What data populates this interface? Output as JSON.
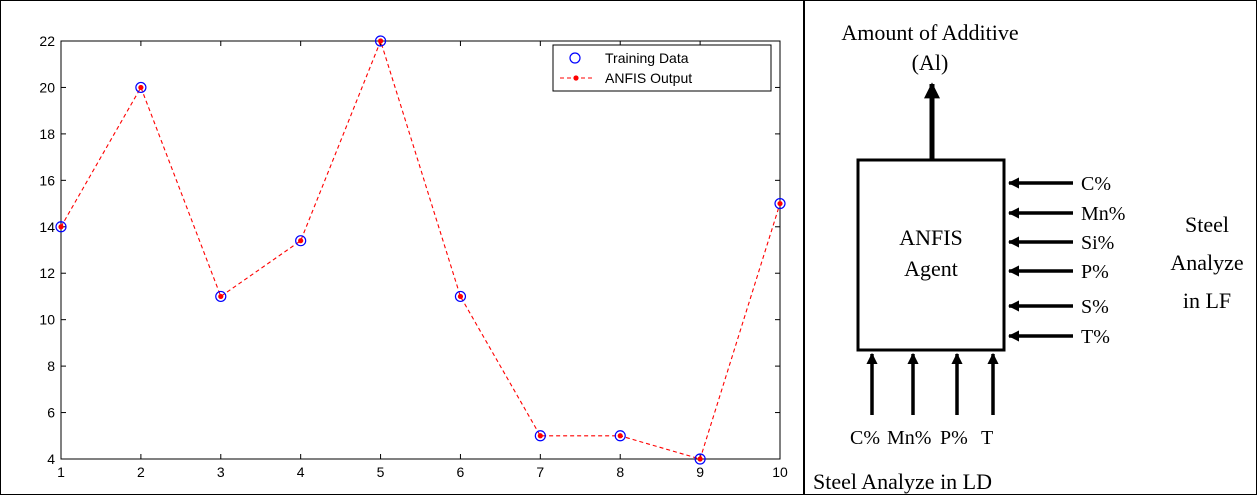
{
  "chart_data": {
    "type": "line",
    "x": [
      1,
      2,
      3,
      4,
      5,
      6,
      7,
      8,
      9,
      10
    ],
    "series": [
      {
        "name": "Training Data",
        "style": "markers",
        "marker": "open-circle",
        "color": "#0000ff",
        "values": [
          14,
          20,
          11,
          13.4,
          22,
          11,
          5,
          5,
          4,
          15
        ]
      },
      {
        "name": "ANFIS Output",
        "style": "dashed-line",
        "marker": "dot",
        "color": "#ff0000",
        "values": [
          14,
          20,
          11,
          13.4,
          22,
          11,
          5,
          5,
          4,
          15
        ]
      }
    ],
    "xlim": [
      1,
      10
    ],
    "ylim": [
      4,
      22
    ],
    "xticks": [
      1,
      2,
      3,
      4,
      5,
      6,
      7,
      8,
      9,
      10
    ],
    "yticks": [
      4,
      6,
      8,
      10,
      12,
      14,
      16,
      18,
      20,
      22
    ],
    "grid": false,
    "legend_position": "top-right"
  },
  "diagram": {
    "output_label_line1": "Amount of Additive",
    "output_label_line2": "(Al)",
    "agent_line1": "ANFIS",
    "agent_line2": "Agent",
    "right_inputs": [
      "C%",
      "Mn%",
      "Si%",
      "P%",
      "S%",
      "T%"
    ],
    "right_group_label": [
      "Steel",
      "Analyze",
      "in LF"
    ],
    "bottom_inputs": [
      "C%",
      "Mn%",
      "P%",
      "T"
    ],
    "bottom_group_label": "Steel Analyze in LD"
  }
}
